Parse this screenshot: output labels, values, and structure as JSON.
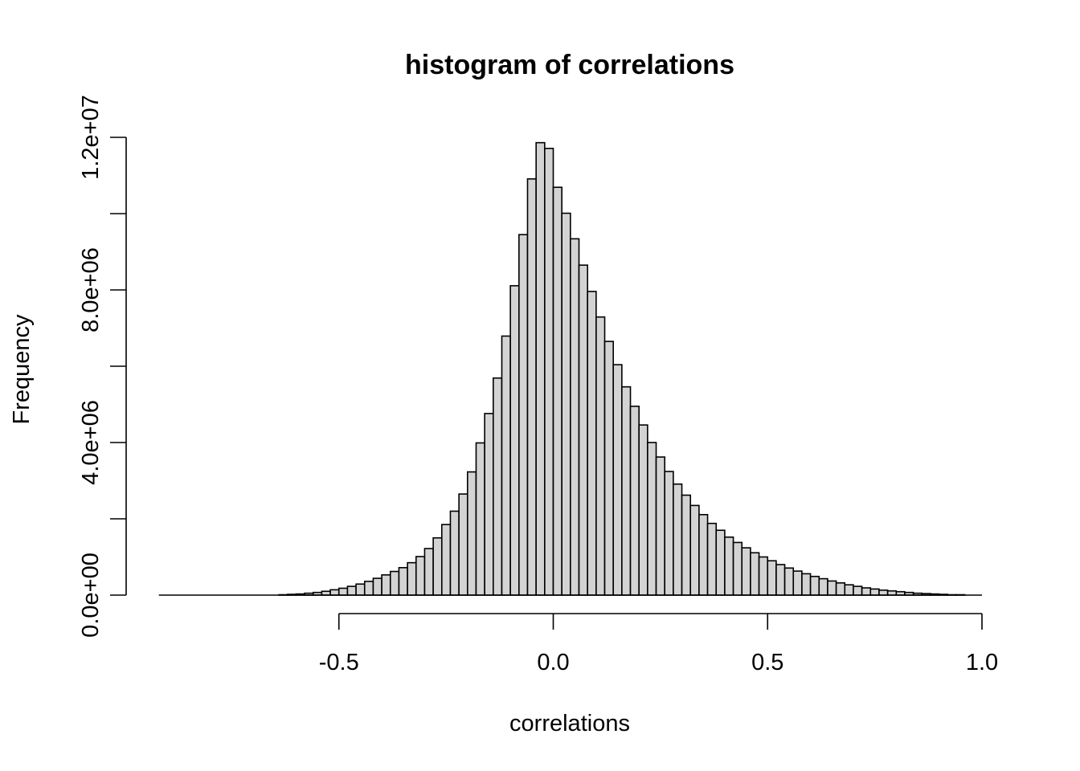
{
  "chart_data": {
    "type": "bar",
    "title": "histogram of correlations",
    "xlabel": "correlations",
    "ylabel": "Frequency",
    "bin_width": 0.02,
    "bin_start": -0.92,
    "frequencies": [
      0,
      0,
      0,
      0,
      0,
      0,
      0,
      0,
      0,
      0,
      0,
      0,
      0,
      0,
      10000,
      20000,
      30000,
      50000,
      70000,
      100000,
      140000,
      180000,
      230000,
      290000,
      360000,
      440000,
      530000,
      620000,
      720000,
      850000,
      1010000,
      1220000,
      1500000,
      1850000,
      2200000,
      2650000,
      3230000,
      3990000,
      4760000,
      5690000,
      6790000,
      8110000,
      9450000,
      10910000,
      11860000,
      11710000,
      10690000,
      10010000,
      9340000,
      8650000,
      7960000,
      7290000,
      6650000,
      6040000,
      5460000,
      4950000,
      4460000,
      4000000,
      3620000,
      3240000,
      2910000,
      2620000,
      2350000,
      2110000,
      1880000,
      1700000,
      1520000,
      1380000,
      1240000,
      1110000,
      1000000,
      900000,
      800000,
      710000,
      630000,
      560000,
      490000,
      430000,
      370000,
      320000,
      270000,
      230000,
      190000,
      160000,
      130000,
      110000,
      90000,
      70000,
      50000,
      40000,
      30000,
      20000,
      10000,
      10000,
      0,
      0,
      0,
      0
    ],
    "x_ticks": [
      {
        "value": -0.5,
        "label": "-0.5"
      },
      {
        "value": 0.0,
        "label": "0.0"
      },
      {
        "value": 0.5,
        "label": "0.5"
      },
      {
        "value": 1.0,
        "label": "1.0"
      }
    ],
    "y_ticks": [
      {
        "value": 0,
        "label": "0.0e+00"
      },
      {
        "value": 2000000,
        "label": ""
      },
      {
        "value": 4000000,
        "label": "4.0e+06"
      },
      {
        "value": 6000000,
        "label": ""
      },
      {
        "value": 8000000,
        "label": "8.0e+06"
      },
      {
        "value": 10000000,
        "label": ""
      },
      {
        "value": 12000000,
        "label": "1.2e+07"
      }
    ],
    "xlim": [
      -0.92,
      1.0
    ],
    "ylim": [
      0,
      12000000
    ],
    "bar_color": "#d3d3d3",
    "grid": false,
    "legend": "none"
  }
}
